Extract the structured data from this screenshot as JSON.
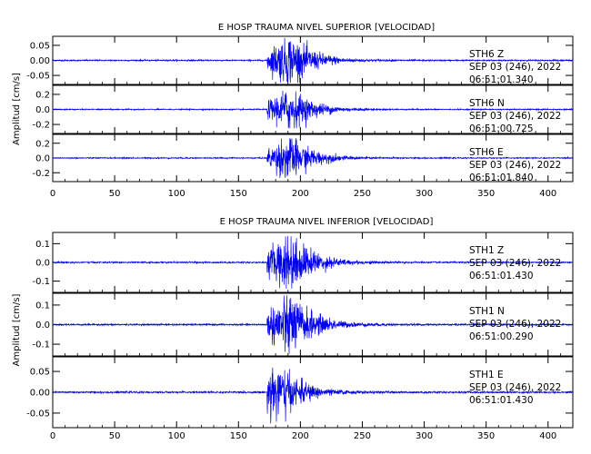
{
  "chart_data": [
    {
      "type": "line",
      "title": "E HOSP TRAUMA NIVEL SUPERIOR [VELOCIDAD]",
      "ylabel": "Amplitud [cm/s]",
      "xlim": [
        0,
        420
      ],
      "xticks": [
        "0",
        "50",
        "100",
        "150",
        "200",
        "250",
        "300",
        "350",
        "400"
      ],
      "x_tick_values": [
        0,
        50,
        100,
        150,
        200,
        250,
        300,
        350,
        400
      ],
      "line_color": "#0000ee",
      "series": [
        {
          "yticks": [
            "0.05",
            "0.00",
            "-0.05"
          ],
          "ytick_values": [
            0.05,
            0.0,
            -0.05
          ],
          "ylim": [
            -0.08,
            0.08
          ],
          "peak": 0.075,
          "onset": 173,
          "max_at": 190,
          "station": "STH6   Z",
          "date": "SEP 03 (246), 2022",
          "time": "06:51:01.340"
        },
        {
          "yticks": [
            "0.2",
            "0.0",
            "-0.2"
          ],
          "ytick_values": [
            0.2,
            0.0,
            -0.2
          ],
          "ylim": [
            -0.32,
            0.32
          ],
          "peak": 0.25,
          "onset": 173,
          "max_at": 190,
          "station": "STH6   N",
          "date": "SEP 03 (246), 2022",
          "time": "06:51:00.725"
        },
        {
          "yticks": [
            "0.2",
            "0.0",
            "-0.2"
          ],
          "ytick_values": [
            0.2,
            0.0,
            -0.2
          ],
          "ylim": [
            -0.32,
            0.32
          ],
          "peak": 0.27,
          "onset": 173,
          "max_at": 189,
          "station": "STH6   E",
          "date": "SEP 03 (246), 2022",
          "time": "06:51:01.840"
        }
      ]
    },
    {
      "type": "line",
      "title": "E HOSP TRAUMA NIVEL INFERIOR [VELOCIDAD]",
      "ylabel": "Amplitud [cm/s]",
      "xlim": [
        0,
        420
      ],
      "xticks": [
        "0",
        "50",
        "100",
        "150",
        "200",
        "250",
        "300",
        "350",
        "400"
      ],
      "x_tick_values": [
        0,
        50,
        100,
        150,
        200,
        250,
        300,
        350,
        400
      ],
      "line_color": "#0000ee",
      "series": [
        {
          "yticks": [
            "0.1",
            "0.0",
            "-0.1"
          ],
          "ytick_values": [
            0.1,
            0.0,
            -0.1
          ],
          "ylim": [
            -0.16,
            0.16
          ],
          "peak": 0.14,
          "onset": 173,
          "max_at": 190,
          "station": "STH1   Z",
          "date": "SEP 03 (246), 2022",
          "time": "06:51:01.430"
        },
        {
          "yticks": [
            "0.1",
            "0.0",
            "-0.1"
          ],
          "ytick_values": [
            0.1,
            0.0,
            -0.1
          ],
          "ylim": [
            -0.16,
            0.16
          ],
          "peak": 0.15,
          "onset": 173,
          "max_at": 189,
          "station": "STH1   N",
          "date": "SEP 03 (246), 2022",
          "time": "06:51:00.290"
        },
        {
          "yticks": [
            "0.05",
            "0.00",
            "-0.05"
          ],
          "ytick_values": [
            0.05,
            0.0,
            -0.05
          ],
          "ylim": [
            -0.085,
            0.085
          ],
          "peak": 0.075,
          "onset": 173,
          "max_at": 176,
          "station": "STH1   E",
          "date": "SEP 03 (246), 2022",
          "time": "06:51:01.430"
        }
      ]
    }
  ]
}
